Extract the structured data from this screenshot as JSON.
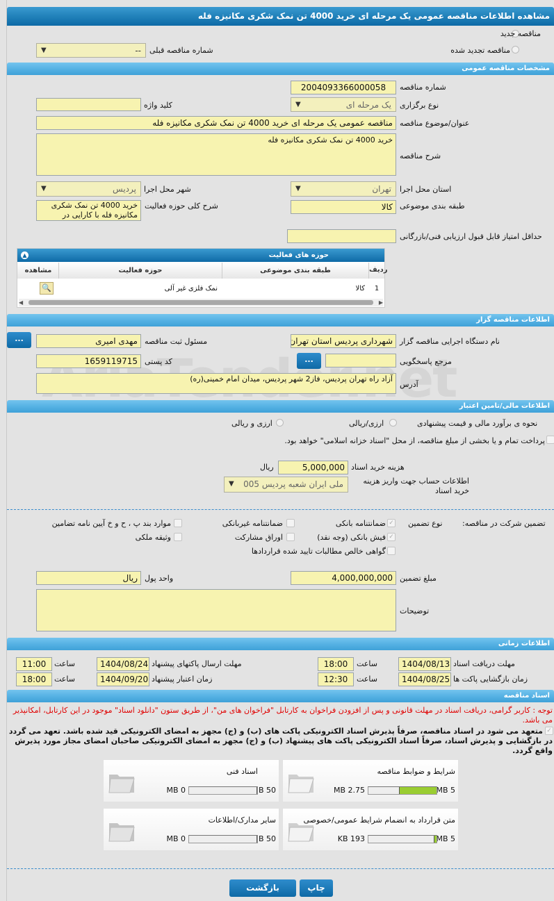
{
  "title": "مشاهده اطلاعات مناقصه عمومی یک مرحله ای خرید 4000 تن نمک شکری مکانیزه فله",
  "watermark": "AriaTender.net",
  "top": {
    "radio_new": "مناقصه جدید",
    "radio_renewed": "مناقصه تجدید شده",
    "prev_number_label": "شماره مناقصه قبلی",
    "prev_number_value": "--"
  },
  "general": {
    "section": "مشخصات مناقصه عمومی",
    "number_label": "شماره مناقصه",
    "number": "2004093366000058",
    "type_label": "نوع برگزاری",
    "type": "یک مرحله ای",
    "keyword_label": "کلید واژه",
    "keyword": "",
    "subject_label": "عنوان/موضوع مناقصه",
    "subject": "مناقصه عمومی یک مرحله ای خرید 4000 تن نمک شکری مکانیزه فله",
    "desc_label": "شرح مناقصه",
    "desc": "خرید 4000 تن نمک شکری مکانیزه فله",
    "province_label": "استان محل اجرا",
    "province": "تهران",
    "city_label": "شهر محل اجرا",
    "city": "پردیس",
    "category_label": "طبقه بندی موضوعی",
    "category": "کالا",
    "scope_label": "شرح کلی حوزه فعالیت",
    "scope": "خرید 4000 تن نمک شکری مکانیزه فله با کارایی در",
    "min_score_label": "حداقل امتیاز قابل قبول ارزیابی فنی/بازرگانی",
    "min_score": ""
  },
  "activity_table": {
    "title": "حوزه های فعالیت",
    "columns": [
      "ردیف",
      "طبقه بندی موضوعی",
      "حوزه فعالیت",
      "مشاهده"
    ],
    "rows": [
      [
        "1",
        "کالا",
        "نمک فلزی غیر آلی",
        ""
      ]
    ]
  },
  "organizer": {
    "section": "اطلاعات مناقصه گزار",
    "org_label": "نام دستگاه اجرایی مناقصه گزار",
    "org": "شهرداری پردیس استان تهران",
    "resp_label": "مسئول ثبت مناقصه",
    "resp": "مهدی امیری",
    "ref_label": "مرجع پاسخگویی",
    "ref": "",
    "postal_label": "کد پستی",
    "postal": "1659119715",
    "address_label": "آدرس",
    "address": "آزاد راه تهران پردیس، فاز2 شهر پردیس، میدان امام خمینی(ره)",
    "more_button": "..."
  },
  "finance": {
    "section": "اطلاعات مالی/تامین اعتبار",
    "estimate_label": "نحوه ی برآورد مالی و قیمت پیشنهادی",
    "opt1": "ارزی/ریالی",
    "opt2": "ارزی و ریالی",
    "treasury_text": "پرداخت تمام و یا بخشی از مبلغ مناقصه، از محل \"اسناد خزانه اسلامی\" خواهد بود.",
    "doc_cost_label": "هزینه خرید اسناد",
    "doc_cost": "5,000,000",
    "doc_cost_unit": "ریال",
    "account_label": "اطلاعات حساب جهت واریز هزینه خرید اسناد",
    "account": "ملی ایران شعبه پردیس 005"
  },
  "guarantee": {
    "label": "تضمین شرکت در مناقصه:",
    "type_label": "نوع تضمین",
    "items": [
      {
        "label": "ضمانتنامه بانکی",
        "checked": true
      },
      {
        "label": "ضمانتنامه غیربانکی",
        "checked": false
      },
      {
        "label": "موارد بند پ ، ح و خ آیین نامه تضامین",
        "checked": false
      },
      {
        "label": "فیش بانکی (وجه نقد)",
        "checked": true
      },
      {
        "label": "اوراق مشارکت",
        "checked": false
      },
      {
        "label": "وثیقه ملکی",
        "checked": false
      },
      {
        "label": "گواهی خالص مطالبات تایید شده قراردادها",
        "checked": false
      }
    ],
    "amount_label": "مبلغ تضمین",
    "amount": "4,000,000,000",
    "currency_label": "واحد پول",
    "currency": "ریال",
    "notes_label": "توضیحات",
    "notes": ""
  },
  "timing": {
    "section": "اطلاعات زمانی",
    "time_label": "ساعت",
    "doc_deadline_label": "مهلت دریافت اسناد",
    "doc_deadline": "1404/08/13",
    "doc_deadline_time": "18:00",
    "submit_label": "مهلت ارسال پاکتهای پیشنهاد",
    "submit": "1404/08/24",
    "submit_time": "11:00",
    "open_label": "زمان بازگشایی پاکت ها",
    "open": "1404/08/25",
    "open_time": "12:30",
    "validity_label": "زمان اعتبار پیشنهاد",
    "validity": "1404/09/20",
    "validity_time": "18:00"
  },
  "docs": {
    "section": "اسناد مناقصه",
    "notice": "توجه : کاربر گرامی، دریافت اسناد در مهلت قانونی و پس از افزودن فراخوان به کارتابل \"فراخوان های من\"، از طریق ستون \"دانلود اسناد\" موجود در این کارتابل، امکانپذیر می باشد.",
    "pledge": "متعهد می شود در اسناد مناقصه، صرفاً پذیرش اسناد الکترونیکی پاکت های (ب) و (ج) مجهز به امضای الکترونیکی قید شده باشد. تعهد می گردد در بازگشایی و پذیرش اسناد، صرفاً اسناد الکترونیکی پاکت های پیشنهاد (ب) و (ج) مجهز به امضای الکترونیکی صاحبان امضای مجاز مورد پذیرش واقع گردد.",
    "files": [
      {
        "name": "شرایط و ضوابط مناقصه",
        "size": "2.75 MB",
        "max": "5 MB",
        "fill": 0.55
      },
      {
        "name": "اسناد فنی",
        "size": "0 MB",
        "max": "50 MB",
        "fill": 0
      },
      {
        "name": "متن قرارداد به انضمام شرایط عمومی/خصوصی",
        "size": "193 KB",
        "max": "5 MB",
        "fill": 0.04
      },
      {
        "name": "سایر مدارک/اطلاعات",
        "size": "0 MB",
        "max": "50 MB",
        "fill": 0
      }
    ]
  },
  "buttons": {
    "print": "چاپ",
    "back": "بازگشت"
  },
  "colors": {
    "header": "#1f7fb8",
    "section": "#56b2e4",
    "input": "#f7f3b0",
    "progress": "#9acd32",
    "notice": "#e00000"
  }
}
